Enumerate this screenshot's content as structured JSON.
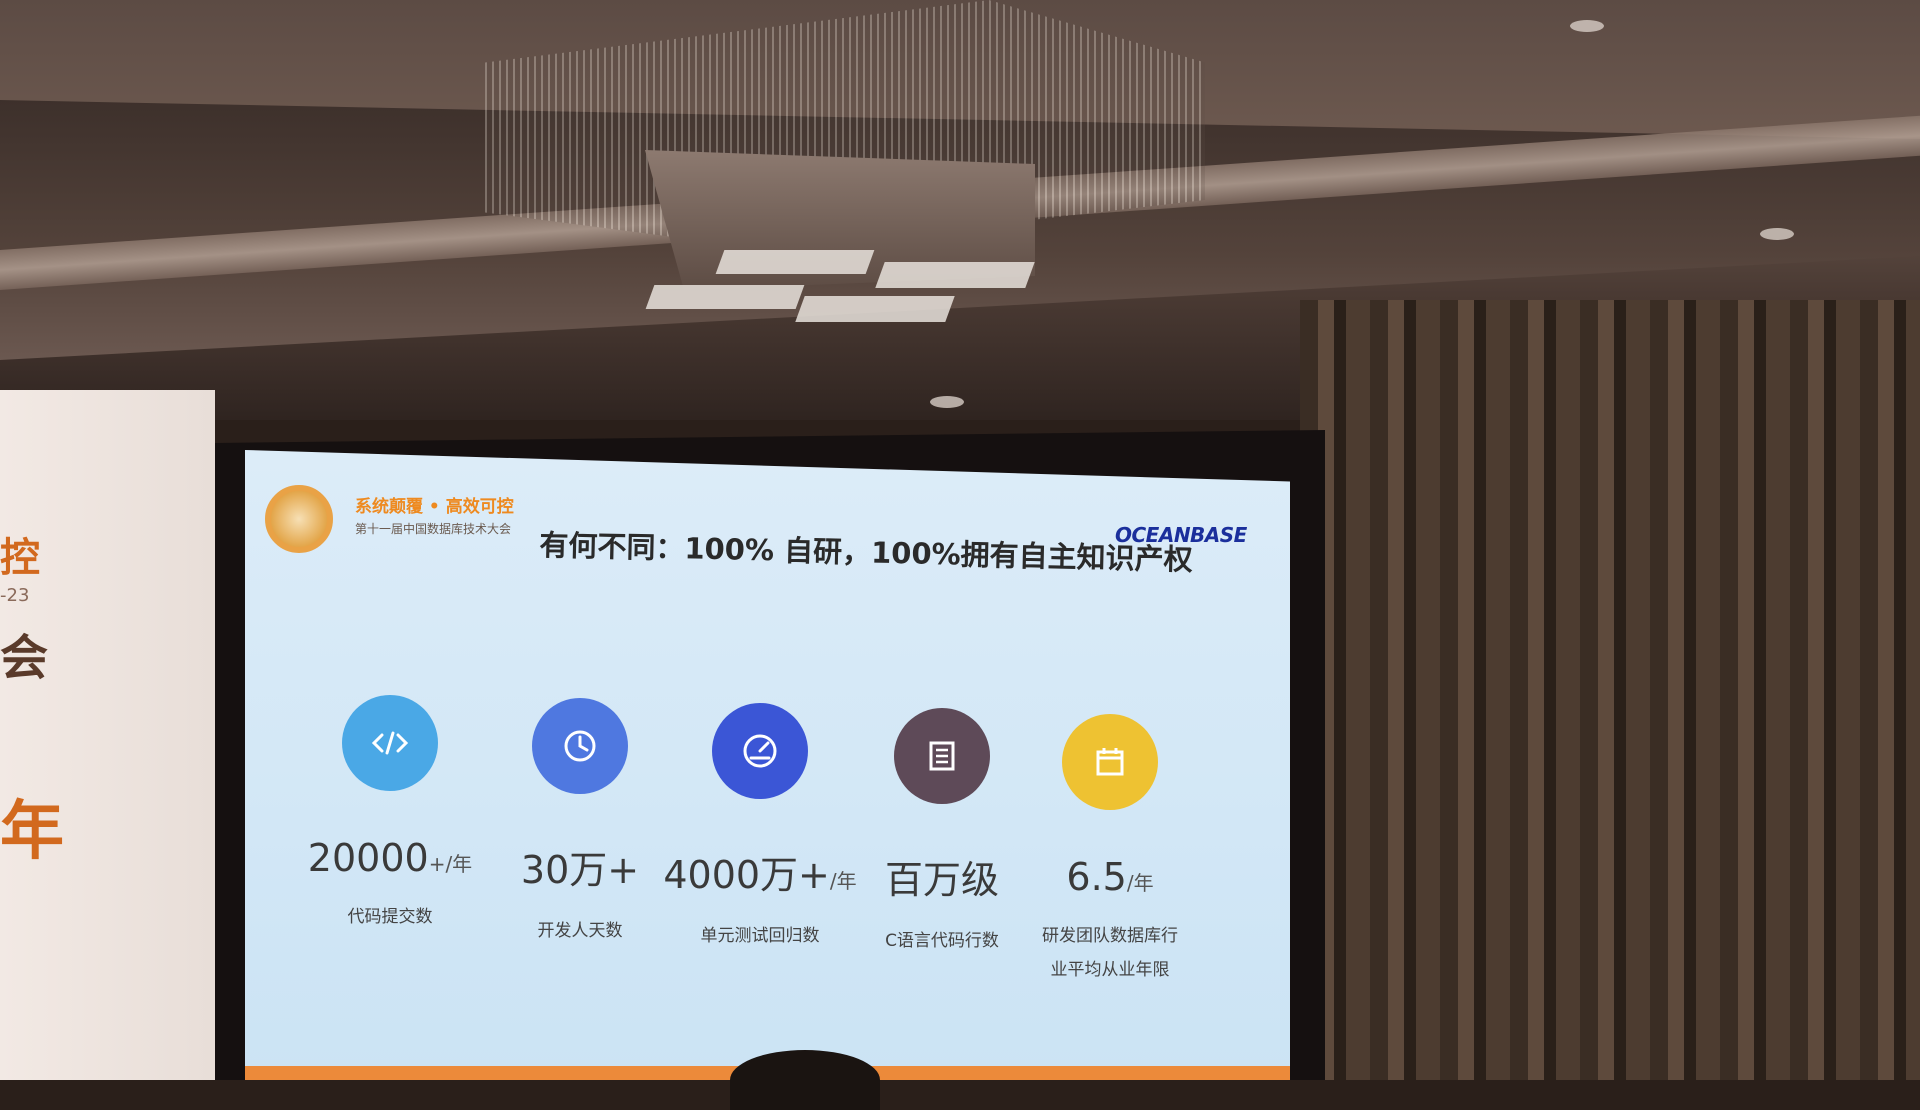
{
  "slide": {
    "conference_line1": "系统颠覆 • 高效可控",
    "conference_line2": "第十一届中国数据库技术大会",
    "title": "有何不同：100% 自研，100%拥有自主知识产权",
    "brand": "OCEANBASE",
    "stats": [
      {
        "icon": "code-icon",
        "color": "#4aa8e6",
        "value": "20000",
        "unit": "+/年",
        "label": "代码提交数"
      },
      {
        "icon": "clock-icon",
        "color": "#4f78e0",
        "value": "30万+",
        "unit": "",
        "label": "开发人天数"
      },
      {
        "icon": "gauge-icon",
        "color": "#3b56d6",
        "value": "4000万+",
        "unit": "/年",
        "label": "单元测试回归数"
      },
      {
        "icon": "document-icon",
        "color": "#5e4a58",
        "value": "百万级",
        "unit": "",
        "label": "C语言代码行数"
      },
      {
        "icon": "calendar-icon",
        "color": "#eec232",
        "value": "6.5",
        "unit": "/年",
        "label": "研发团队数据库行业平均从业年限"
      }
    ]
  },
  "banner": {
    "char1": "控",
    "char2": "-23",
    "char3": "会",
    "char4": "年"
  }
}
